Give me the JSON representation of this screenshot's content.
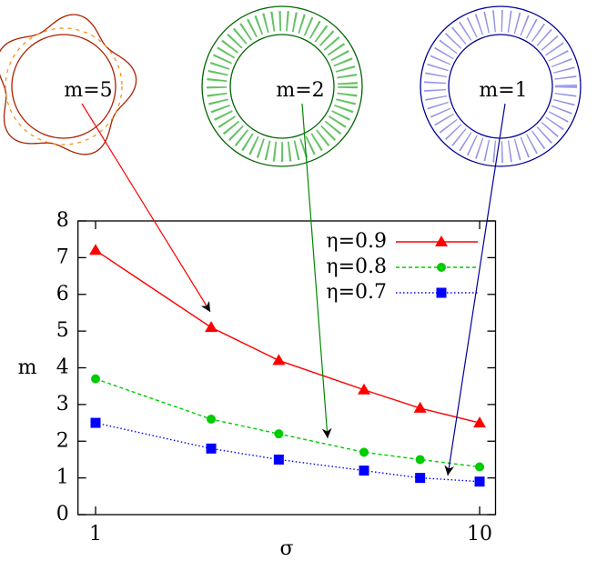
{
  "chart_data": {
    "type": "line",
    "x_label": "σ",
    "y_label": "m",
    "x": [
      1,
      2,
      3,
      5,
      7,
      10
    ],
    "series": [
      {
        "name": "η=0.9",
        "color": "#ff0000",
        "dash": "solid",
        "marker": "triangle",
        "values": [
          7.2,
          5.1,
          4.2,
          3.4,
          2.9,
          2.5
        ]
      },
      {
        "name": "η=0.8",
        "color": "#00cc00",
        "dash": "dashed",
        "marker": "circle",
        "values": [
          3.7,
          2.6,
          2.2,
          1.7,
          1.5,
          1.3
        ]
      },
      {
        "name": "η=0.7",
        "color": "#0000ff",
        "dash": "dotted",
        "marker": "square",
        "values": [
          2.5,
          1.8,
          1.5,
          1.2,
          1.0,
          0.9
        ]
      }
    ],
    "xlim": [
      0.9,
      11
    ],
    "xticks": [
      1,
      10
    ],
    "x_log": true,
    "ylim": [
      0,
      8
    ],
    "yticks": [
      0,
      1,
      2,
      3,
      4,
      5,
      6,
      7,
      8
    ],
    "legend": "top-right",
    "annotations": [
      {
        "text": "m=5",
        "color": "#ff0000"
      },
      {
        "text": "m=2",
        "color": "#008800"
      },
      {
        "text": "m=1",
        "color": "#000099"
      }
    ]
  }
}
